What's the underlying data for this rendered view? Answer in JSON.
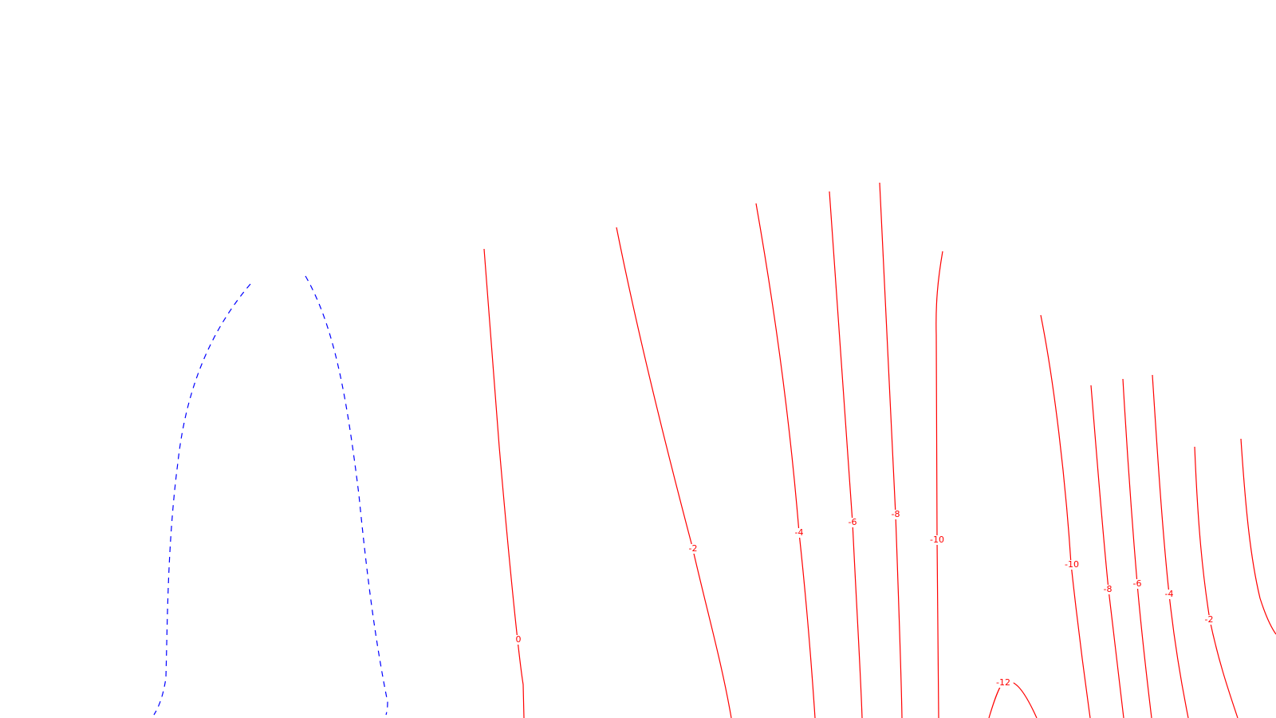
{
  "chart_data": {
    "type": "contour",
    "title": "",
    "xlabel": "",
    "ylabel": "",
    "axes_visible": false,
    "grid": false,
    "legend": "none",
    "colors": {
      "solid_contours": "#ff0000",
      "dashed_contours": "#0000ff"
    },
    "contours": [
      {
        "id": "neg-left",
        "style": "dashed",
        "label": ""
      },
      {
        "id": "neg-right",
        "style": "dashed",
        "label": ""
      },
      {
        "id": "c0",
        "style": "solid",
        "level": 0,
        "label": "0"
      },
      {
        "id": "cm2a",
        "style": "solid",
        "level": -2,
        "label": "-2"
      },
      {
        "id": "cm4a",
        "style": "solid",
        "level": -4,
        "label": "-4"
      },
      {
        "id": "cm6a",
        "style": "solid",
        "level": -6,
        "label": "-6"
      },
      {
        "id": "cm8a",
        "style": "solid",
        "level": -8,
        "label": "-8"
      },
      {
        "id": "cm10a",
        "style": "solid",
        "level": -10,
        "label": "-10"
      },
      {
        "id": "cm12",
        "style": "solid",
        "level": -12,
        "label": "-12"
      },
      {
        "id": "cm10b",
        "style": "solid",
        "level": -10,
        "label": "-10"
      },
      {
        "id": "cm8b",
        "style": "solid",
        "level": -8,
        "label": "-8"
      },
      {
        "id": "cm6b",
        "style": "solid",
        "level": -6,
        "label": "-6"
      },
      {
        "id": "cm4b",
        "style": "solid",
        "level": -4,
        "label": "-4"
      },
      {
        "id": "cm2b",
        "style": "solid",
        "level": -2,
        "label": "-2"
      },
      {
        "id": "c0b",
        "style": "solid",
        "level": 0,
        "label": ""
      }
    ]
  }
}
